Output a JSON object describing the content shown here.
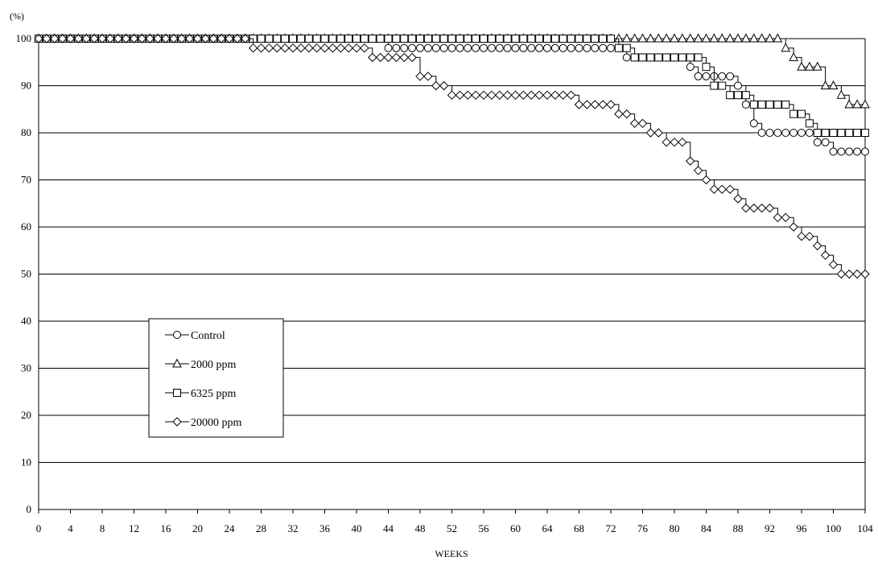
{
  "chart_data": {
    "type": "line",
    "title": "",
    "xlabel": "WEEKS",
    "ylabel": "(%)",
    "xlim": [
      0,
      104
    ],
    "ylim": [
      0,
      100
    ],
    "x_ticks": [
      0,
      4,
      8,
      12,
      16,
      20,
      24,
      28,
      32,
      36,
      40,
      44,
      48,
      52,
      56,
      60,
      64,
      68,
      72,
      76,
      80,
      84,
      88,
      92,
      96,
      100,
      104
    ],
    "y_ticks": [
      0,
      10,
      20,
      30,
      40,
      50,
      60,
      70,
      80,
      90,
      100
    ],
    "grid": "horizontal",
    "legend_position": "lower-left",
    "step": true,
    "series": [
      {
        "name": "Control",
        "marker": "circle",
        "points": [
          [
            0,
            100
          ],
          [
            44,
            100
          ],
          [
            44,
            98
          ],
          [
            74,
            98
          ],
          [
            74,
            96
          ],
          [
            82,
            96
          ],
          [
            82,
            94
          ],
          [
            83,
            94
          ],
          [
            83,
            92
          ],
          [
            88,
            92
          ],
          [
            88,
            90
          ],
          [
            89,
            90
          ],
          [
            89,
            86
          ],
          [
            90,
            86
          ],
          [
            90,
            82
          ],
          [
            91,
            82
          ],
          [
            91,
            80
          ],
          [
            98,
            80
          ],
          [
            98,
            78
          ],
          [
            100,
            78
          ],
          [
            100,
            76
          ],
          [
            104,
            76
          ]
        ]
      },
      {
        "name": "2000 ppm",
        "marker": "triangle",
        "points": [
          [
            0,
            100
          ],
          [
            94,
            100
          ],
          [
            94,
            98
          ],
          [
            95,
            98
          ],
          [
            95,
            96
          ],
          [
            96,
            96
          ],
          [
            96,
            94
          ],
          [
            99,
            94
          ],
          [
            99,
            90
          ],
          [
            101,
            90
          ],
          [
            101,
            88
          ],
          [
            102,
            88
          ],
          [
            102,
            86
          ],
          [
            104,
            86
          ]
        ]
      },
      {
        "name": "6325 ppm",
        "marker": "square",
        "points": [
          [
            0,
            100
          ],
          [
            73,
            100
          ],
          [
            73,
            98
          ],
          [
            75,
            98
          ],
          [
            75,
            96
          ],
          [
            84,
            96
          ],
          [
            84,
            94
          ],
          [
            85,
            94
          ],
          [
            85,
            90
          ],
          [
            87,
            90
          ],
          [
            87,
            88
          ],
          [
            90,
            88
          ],
          [
            90,
            86
          ],
          [
            95,
            86
          ],
          [
            95,
            84
          ],
          [
            97,
            84
          ],
          [
            97,
            82
          ],
          [
            98,
            82
          ],
          [
            98,
            80
          ],
          [
            104,
            80
          ]
        ]
      },
      {
        "name": "20000 ppm",
        "marker": "diamond",
        "points": [
          [
            0,
            100
          ],
          [
            27,
            100
          ],
          [
            27,
            98
          ],
          [
            42,
            98
          ],
          [
            42,
            96
          ],
          [
            48,
            96
          ],
          [
            48,
            92
          ],
          [
            50,
            92
          ],
          [
            50,
            90
          ],
          [
            52,
            90
          ],
          [
            52,
            88
          ],
          [
            68,
            88
          ],
          [
            68,
            86
          ],
          [
            73,
            86
          ],
          [
            73,
            84
          ],
          [
            75,
            84
          ],
          [
            75,
            82
          ],
          [
            77,
            82
          ],
          [
            77,
            80
          ],
          [
            79,
            80
          ],
          [
            79,
            78
          ],
          [
            82,
            78
          ],
          [
            82,
            74
          ],
          [
            83,
            74
          ],
          [
            83,
            72
          ],
          [
            84,
            72
          ],
          [
            84,
            70
          ],
          [
            85,
            70
          ],
          [
            85,
            68
          ],
          [
            88,
            68
          ],
          [
            88,
            66
          ],
          [
            89,
            66
          ],
          [
            89,
            64
          ],
          [
            93,
            64
          ],
          [
            93,
            62
          ],
          [
            95,
            62
          ],
          [
            95,
            60
          ],
          [
            96,
            60
          ],
          [
            96,
            58
          ],
          [
            98,
            58
          ],
          [
            98,
            56
          ],
          [
            99,
            56
          ],
          [
            99,
            54
          ],
          [
            100,
            54
          ],
          [
            100,
            52
          ],
          [
            101,
            52
          ],
          [
            101,
            50
          ],
          [
            104,
            50
          ]
        ]
      }
    ]
  }
}
